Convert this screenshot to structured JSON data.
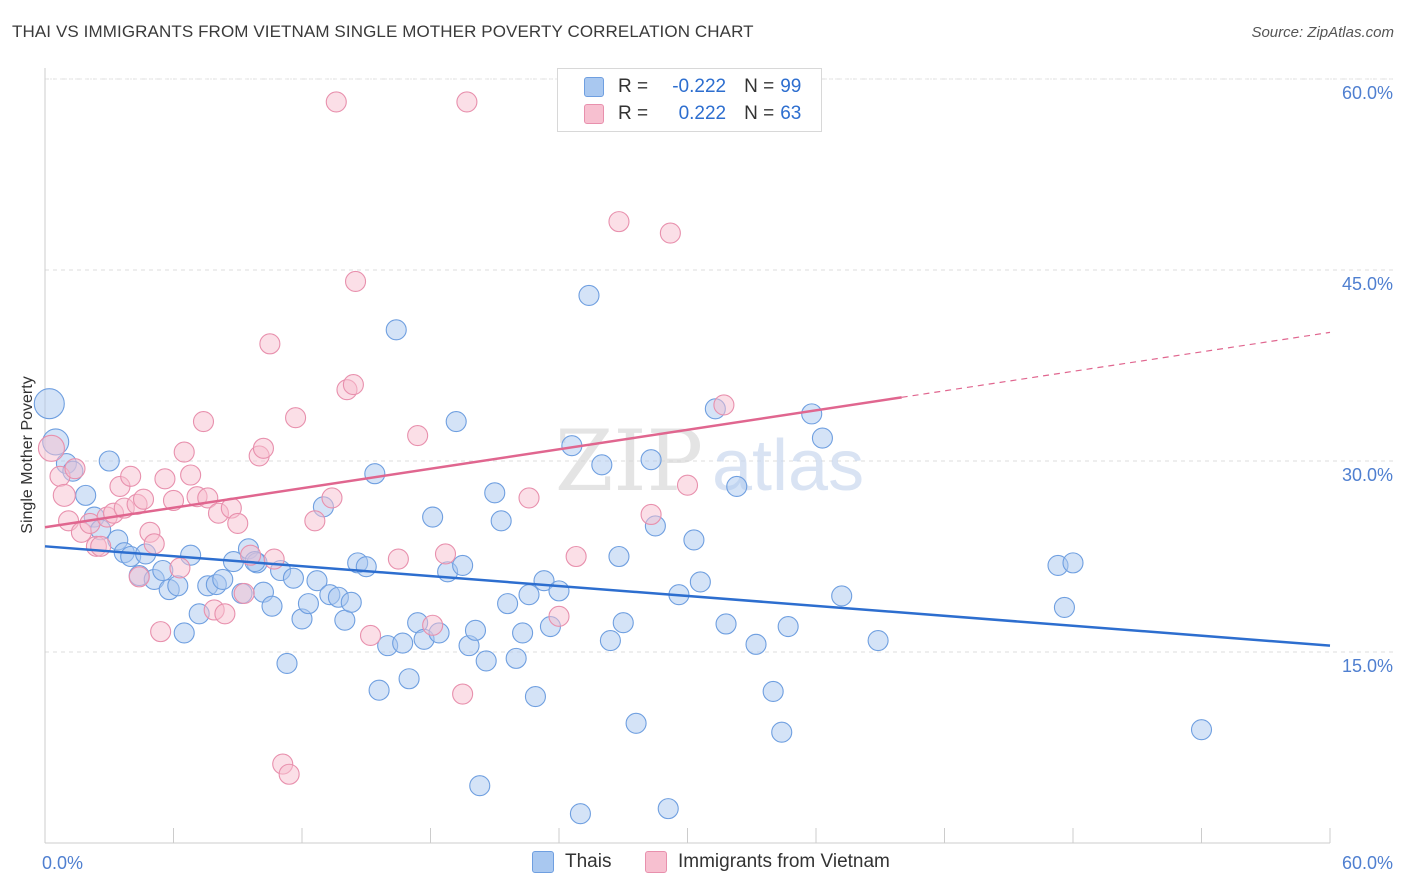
{
  "title": "THAI VS IMMIGRANTS FROM VIETNAM SINGLE MOTHER POVERTY CORRELATION CHART",
  "source": "Source: ZipAtlas.com",
  "watermark": {
    "zip": "ZIP",
    "atlas": "atlas"
  },
  "legend": {
    "r_label": "R =",
    "n_label": "N =",
    "rows": [
      {
        "r": "-0.222",
        "n": "99",
        "color": "#a9c8f0",
        "border": "#6f9fe0"
      },
      {
        "r": "0.222",
        "n": "63",
        "color": "#f7c0d0",
        "border": "#e890ad"
      }
    ]
  },
  "bottom_legend": [
    {
      "label": "Thais",
      "color": "#a9c8f0",
      "border": "#6f9fe0"
    },
    {
      "label": "Immigrants from Vietnam",
      "color": "#f7c0d0",
      "border": "#e890ad"
    }
  ],
  "chart_data": {
    "type": "scatter",
    "title": "THAI VS IMMIGRANTS FROM VIETNAM SINGLE MOTHER POVERTY CORRELATION CHART",
    "xlabel": "",
    "ylabel": "Single Mother Poverty",
    "xlim": [
      0,
      60
    ],
    "ylim": [
      0,
      60
    ],
    "x_tick_labels": [
      "0.0%",
      "60.0%"
    ],
    "y_ticks": [
      15,
      30,
      45,
      60
    ],
    "y_tick_labels": [
      "15.0%",
      "30.0%",
      "45.0%",
      "60.0%"
    ],
    "grid": true,
    "legend_position": "top-center",
    "series": [
      {
        "name": "Thais",
        "color": "#6f9fe0",
        "fill": "#a9c8f0",
        "trend": {
          "x0": 0,
          "y0": 23.3,
          "x1": 60,
          "y1": 15.5,
          "color": "#2d6ecf"
        },
        "points": [
          [
            0.2,
            34.5
          ],
          [
            0.5,
            31.5
          ],
          [
            1.0,
            29.8
          ],
          [
            1.3,
            29.2
          ],
          [
            1.9,
            27.3
          ],
          [
            2.3,
            25.6
          ],
          [
            2.6,
            24.6
          ],
          [
            3.0,
            30.0
          ],
          [
            3.4,
            23.8
          ],
          [
            3.7,
            22.8
          ],
          [
            4.0,
            22.5
          ],
          [
            4.4,
            21.0
          ],
          [
            4.7,
            22.7
          ],
          [
            5.1,
            20.7
          ],
          [
            5.5,
            21.4
          ],
          [
            5.8,
            19.9
          ],
          [
            6.2,
            20.2
          ],
          [
            6.5,
            16.5
          ],
          [
            6.8,
            22.6
          ],
          [
            7.2,
            18.0
          ],
          [
            7.6,
            20.2
          ],
          [
            8.0,
            20.3
          ],
          [
            8.3,
            20.7
          ],
          [
            8.8,
            22.1
          ],
          [
            9.2,
            19.6
          ],
          [
            9.5,
            23.1
          ],
          [
            9.9,
            22.0
          ],
          [
            10.2,
            19.7
          ],
          [
            10.6,
            18.6
          ],
          [
            11.0,
            21.4
          ],
          [
            11.3,
            14.1
          ],
          [
            11.6,
            20.8
          ],
          [
            12.0,
            17.6
          ],
          [
            12.3,
            18.8
          ],
          [
            12.7,
            20.6
          ],
          [
            13.0,
            26.4
          ],
          [
            13.3,
            19.5
          ],
          [
            13.7,
            19.3
          ],
          [
            14.0,
            17.5
          ],
          [
            14.3,
            18.9
          ],
          [
            14.6,
            22.0
          ],
          [
            15.0,
            21.7
          ],
          [
            15.4,
            29.0
          ],
          [
            15.6,
            12.0
          ],
          [
            16.0,
            15.5
          ],
          [
            16.4,
            40.3
          ],
          [
            16.7,
            15.7
          ],
          [
            17.0,
            12.9
          ],
          [
            17.4,
            17.3
          ],
          [
            17.7,
            16.0
          ],
          [
            18.1,
            25.6
          ],
          [
            18.4,
            16.5
          ],
          [
            18.8,
            21.3
          ],
          [
            19.2,
            33.1
          ],
          [
            19.5,
            21.8
          ],
          [
            19.8,
            15.5
          ],
          [
            20.1,
            16.7
          ],
          [
            20.6,
            14.3
          ],
          [
            21.0,
            27.5
          ],
          [
            21.3,
            25.3
          ],
          [
            21.6,
            18.8
          ],
          [
            22.0,
            14.5
          ],
          [
            22.3,
            16.5
          ],
          [
            22.6,
            19.5
          ],
          [
            22.9,
            11.5
          ],
          [
            23.3,
            20.6
          ],
          [
            23.6,
            17.0
          ],
          [
            24.0,
            19.8
          ],
          [
            24.6,
            31.2
          ],
          [
            25.0,
            2.3
          ],
          [
            25.4,
            43.0
          ],
          [
            26.0,
            29.7
          ],
          [
            26.4,
            15.9
          ],
          [
            26.8,
            22.5
          ],
          [
            27.0,
            17.3
          ],
          [
            27.6,
            9.4
          ],
          [
            28.3,
            30.1
          ],
          [
            28.5,
            24.9
          ],
          [
            29.1,
            2.7
          ],
          [
            29.6,
            19.5
          ],
          [
            30.3,
            23.8
          ],
          [
            30.6,
            20.5
          ],
          [
            31.3,
            34.1
          ],
          [
            31.8,
            17.2
          ],
          [
            32.3,
            28.0
          ],
          [
            33.2,
            15.6
          ],
          [
            34.0,
            11.9
          ],
          [
            34.4,
            8.7
          ],
          [
            34.7,
            17.0
          ],
          [
            35.8,
            33.7
          ],
          [
            36.3,
            31.8
          ],
          [
            37.2,
            19.4
          ],
          [
            38.9,
            15.9
          ],
          [
            47.3,
            21.8
          ],
          [
            47.6,
            18.5
          ],
          [
            48.0,
            22.0
          ],
          [
            54.0,
            8.9
          ],
          [
            20.3,
            4.5
          ],
          [
            9.8,
            22.1
          ]
        ]
      },
      {
        "name": "Immigrants from Vietnam",
        "color": "#e890ad",
        "fill": "#f7c0d0",
        "trend": {
          "x0": 0,
          "y0": 24.8,
          "x1": 40,
          "y1": 35.0,
          "x_dash_end": 60,
          "y_dash_end": 40.1,
          "color": "#e0668f"
        },
        "points": [
          [
            0.3,
            31.0
          ],
          [
            0.7,
            28.8
          ],
          [
            0.9,
            27.3
          ],
          [
            1.1,
            25.3
          ],
          [
            1.4,
            29.4
          ],
          [
            1.7,
            24.4
          ],
          [
            2.1,
            25.1
          ],
          [
            2.4,
            23.3
          ],
          [
            2.6,
            23.3
          ],
          [
            2.9,
            25.6
          ],
          [
            3.2,
            25.9
          ],
          [
            3.5,
            28.0
          ],
          [
            3.7,
            26.3
          ],
          [
            4.0,
            28.8
          ],
          [
            4.3,
            26.6
          ],
          [
            4.6,
            27.0
          ],
          [
            4.9,
            24.4
          ],
          [
            5.1,
            23.5
          ],
          [
            5.4,
            16.6
          ],
          [
            5.6,
            28.6
          ],
          [
            6.0,
            26.9
          ],
          [
            6.3,
            21.6
          ],
          [
            6.5,
            30.7
          ],
          [
            6.8,
            28.9
          ],
          [
            7.1,
            27.2
          ],
          [
            7.4,
            33.1
          ],
          [
            7.6,
            27.1
          ],
          [
            7.9,
            18.3
          ],
          [
            8.1,
            25.9
          ],
          [
            8.4,
            18.0
          ],
          [
            8.7,
            26.3
          ],
          [
            9.0,
            25.1
          ],
          [
            9.3,
            19.6
          ],
          [
            9.6,
            22.6
          ],
          [
            10.0,
            30.4
          ],
          [
            10.2,
            31.0
          ],
          [
            10.5,
            39.2
          ],
          [
            11.1,
            6.2
          ],
          [
            11.4,
            5.4
          ],
          [
            11.7,
            33.4
          ],
          [
            12.6,
            25.3
          ],
          [
            13.4,
            27.1
          ],
          [
            13.6,
            58.2
          ],
          [
            14.1,
            35.6
          ],
          [
            14.4,
            36.0
          ],
          [
            14.5,
            44.1
          ],
          [
            15.2,
            16.3
          ],
          [
            16.5,
            22.3
          ],
          [
            17.4,
            32.0
          ],
          [
            18.1,
            17.1
          ],
          [
            18.7,
            22.7
          ],
          [
            19.5,
            11.7
          ],
          [
            19.7,
            58.2
          ],
          [
            22.6,
            27.1
          ],
          [
            24.0,
            17.8
          ],
          [
            24.8,
            22.5
          ],
          [
            26.8,
            48.8
          ],
          [
            28.3,
            25.8
          ],
          [
            29.2,
            47.9
          ],
          [
            30.0,
            28.1
          ],
          [
            31.7,
            34.4
          ],
          [
            4.4,
            20.9
          ],
          [
            10.7,
            22.3
          ]
        ]
      }
    ]
  }
}
